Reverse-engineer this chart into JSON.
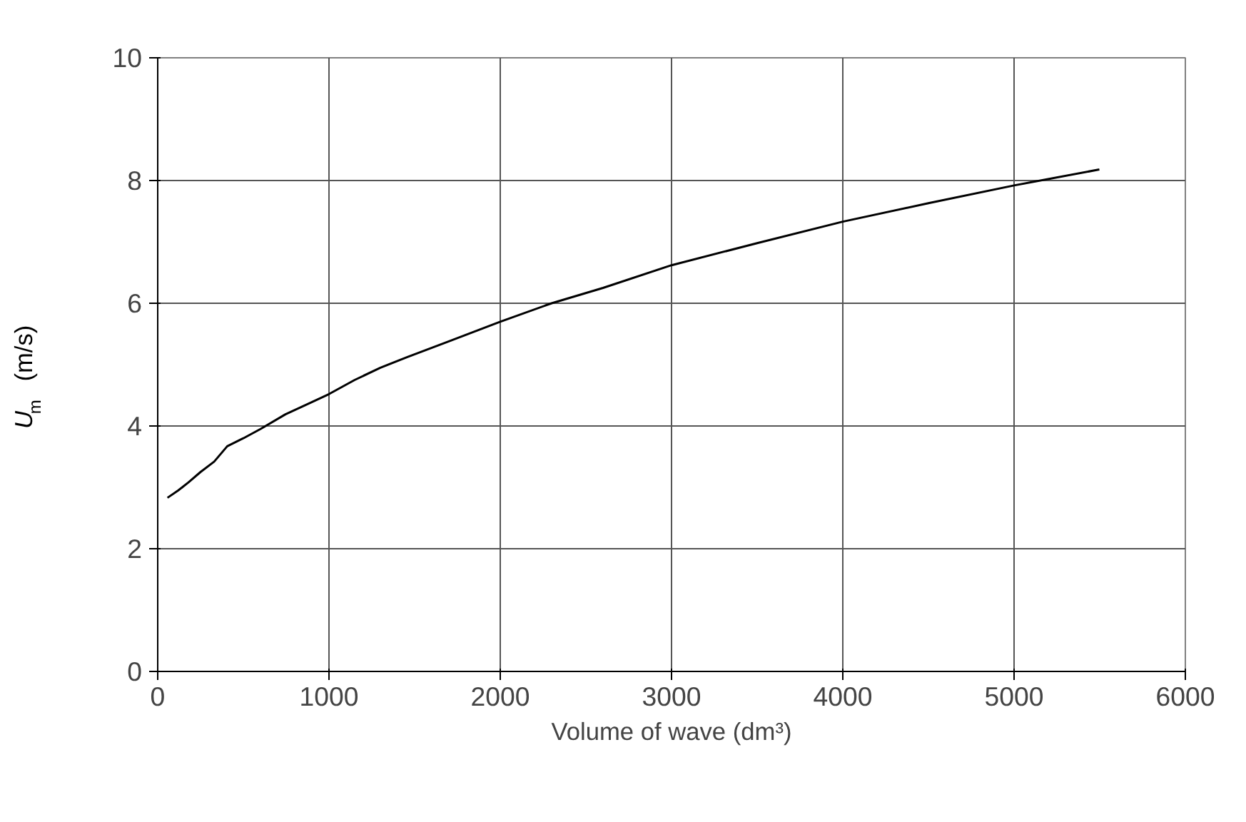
{
  "chart_data": {
    "type": "line",
    "xlabel": "Volume of wave (dm³)",
    "ylabel": "U$_{m}$  (m/s)",
    "series": [
      {
        "color": "#000000",
        "x": [
          57,
          120,
          179,
          250,
          330,
          406,
          500,
          600,
          746,
          870,
          1000,
          1150,
          1300,
          1455,
          1700,
          2000,
          2300,
          2600,
          3000,
          3500,
          4000,
          4500,
          5000,
          5498
        ],
        "values": [
          2.83,
          2.95,
          3.08,
          3.25,
          3.42,
          3.67,
          3.8,
          3.95,
          4.19,
          4.35,
          4.52,
          4.75,
          4.95,
          5.12,
          5.38,
          5.7,
          6.0,
          6.25,
          6.62,
          6.98,
          7.33,
          7.63,
          7.92,
          8.18
        ]
      }
    ],
    "xlim": [
      0,
      6000
    ],
    "ylim": [
      0,
      10
    ],
    "xticks": [
      0,
      1000,
      2000,
      3000,
      4000,
      5000,
      6000
    ],
    "yticks": [
      0,
      2,
      4,
      6,
      8,
      10
    ],
    "grid": true,
    "marker": "none",
    "line_style": "solid"
  }
}
